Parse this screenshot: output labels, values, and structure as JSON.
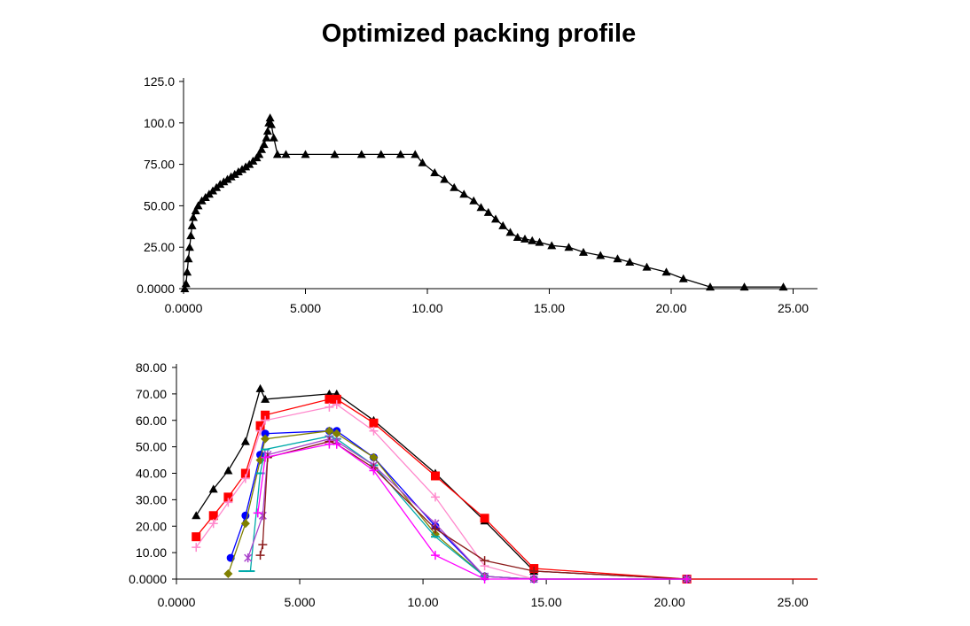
{
  "title": "Optimized packing profile",
  "chart_data": [
    {
      "type": "line",
      "xlim": [
        0,
        26
      ],
      "ylim": [
        0,
        125
      ],
      "x_ticks": [
        "0.0000",
        "5.000",
        "10.00",
        "15.00",
        "20.00",
        "25.00"
      ],
      "y_ticks": [
        "0.0000",
        "25.00",
        "50.00",
        "75.00",
        "100.0",
        "125.0"
      ],
      "grid": false,
      "series": [
        {
          "color": "#000000",
          "marker": "triangle",
          "points": [
            [
              0.05,
              0
            ],
            [
              0.1,
              3
            ],
            [
              0.15,
              10
            ],
            [
              0.2,
              18
            ],
            [
              0.25,
              25
            ],
            [
              0.3,
              32
            ],
            [
              0.35,
              38
            ],
            [
              0.4,
              43
            ],
            [
              0.5,
              47
            ],
            [
              0.6,
              50
            ],
            [
              0.75,
              53
            ],
            [
              0.9,
              55
            ],
            [
              1.05,
              57
            ],
            [
              1.2,
              59
            ],
            [
              1.35,
              61
            ],
            [
              1.5,
              63
            ],
            [
              1.65,
              64.5
            ],
            [
              1.8,
              66
            ],
            [
              1.95,
              67.5
            ],
            [
              2.1,
              69
            ],
            [
              2.25,
              70.5
            ],
            [
              2.4,
              72
            ],
            [
              2.55,
              73.5
            ],
            [
              2.7,
              75
            ],
            [
              2.85,
              77
            ],
            [
              3.0,
              79
            ],
            [
              3.1,
              81
            ],
            [
              3.2,
              84
            ],
            [
              3.3,
              87
            ],
            [
              3.4,
              91
            ],
            [
              3.45,
              95
            ],
            [
              3.5,
              100
            ],
            [
              3.55,
              103
            ],
            [
              3.6,
              99
            ],
            [
              3.7,
              91
            ],
            [
              3.85,
              81
            ],
            [
              4.2,
              81
            ],
            [
              5.0,
              81
            ],
            [
              6.2,
              81
            ],
            [
              7.3,
              81
            ],
            [
              8.1,
              81
            ],
            [
              8.9,
              81
            ],
            [
              9.5,
              81
            ],
            [
              9.8,
              76
            ],
            [
              10.3,
              70
            ],
            [
              10.7,
              66
            ],
            [
              11.1,
              61
            ],
            [
              11.5,
              57
            ],
            [
              11.9,
              53
            ],
            [
              12.2,
              49
            ],
            [
              12.5,
              46
            ],
            [
              12.8,
              42
            ],
            [
              13.1,
              38
            ],
            [
              13.4,
              34
            ],
            [
              13.7,
              31
            ],
            [
              14.0,
              30
            ],
            [
              14.3,
              29
            ],
            [
              14.6,
              28
            ],
            [
              15.1,
              26
            ],
            [
              15.8,
              25
            ],
            [
              16.4,
              22
            ],
            [
              17.1,
              20
            ],
            [
              17.8,
              18
            ],
            [
              18.3,
              16
            ],
            [
              19.0,
              13
            ],
            [
              19.8,
              10
            ],
            [
              20.5,
              6
            ],
            [
              21.6,
              1
            ],
            [
              23.0,
              1
            ],
            [
              24.6,
              1
            ]
          ]
        }
      ]
    },
    {
      "type": "line",
      "xlim": [
        0,
        26
      ],
      "ylim": [
        0,
        80
      ],
      "x_ticks": [
        "0.0000",
        "5.000",
        "10.00",
        "15.00",
        "20.00",
        "25.00"
      ],
      "y_ticks": [
        "0.0000",
        "10.00",
        "20.00",
        "30.00",
        "40.00",
        "50.00",
        "60.00",
        "70.00",
        "80.00"
      ],
      "grid": false,
      "series": [
        {
          "color": "#000000",
          "marker": "triangle",
          "points": [
            [
              0.8,
              24
            ],
            [
              1.5,
              34
            ],
            [
              2.1,
              41
            ],
            [
              2.8,
              52
            ],
            [
              3.4,
              72
            ],
            [
              3.6,
              68
            ],
            [
              6.2,
              70
            ],
            [
              6.5,
              70
            ],
            [
              8.0,
              60
            ],
            [
              10.5,
              40
            ],
            [
              12.5,
              22
            ],
            [
              14.5,
              3
            ],
            [
              20.7,
              0
            ],
            [
              26,
              0
            ]
          ]
        },
        {
          "color": "#ff0000",
          "marker": "square",
          "points": [
            [
              0.8,
              16
            ],
            [
              1.5,
              24
            ],
            [
              2.1,
              31
            ],
            [
              2.8,
              40
            ],
            [
              3.4,
              58
            ],
            [
              3.6,
              62
            ],
            [
              6.2,
              68
            ],
            [
              6.5,
              68
            ],
            [
              8.0,
              59
            ],
            [
              10.5,
              39
            ],
            [
              12.5,
              23
            ],
            [
              14.5,
              4
            ],
            [
              20.7,
              0
            ],
            [
              26,
              0
            ]
          ]
        },
        {
          "color": "#ff88cc",
          "marker": "cross",
          "points": [
            [
              0.8,
              12
            ],
            [
              1.5,
              21
            ],
            [
              2.1,
              29
            ],
            [
              2.8,
              38
            ],
            [
              3.4,
              56
            ],
            [
              3.6,
              60
            ],
            [
              6.2,
              65
            ],
            [
              6.5,
              66
            ],
            [
              8.0,
              56
            ],
            [
              10.5,
              31
            ],
            [
              12.5,
              5
            ],
            [
              14.5,
              0
            ],
            [
              20.7,
              0
            ]
          ]
        },
        {
          "color": "#0000ff",
          "marker": "circle",
          "points": [
            [
              2.2,
              8
            ],
            [
              2.8,
              24
            ],
            [
              3.4,
              47
            ],
            [
              3.6,
              55
            ],
            [
              6.2,
              56
            ],
            [
              6.5,
              56
            ],
            [
              8.0,
              46
            ],
            [
              10.5,
              20
            ],
            [
              12.5,
              1
            ],
            [
              14.5,
              0
            ],
            [
              20.7,
              0
            ]
          ]
        },
        {
          "color": "#808000",
          "marker": "diamond",
          "points": [
            [
              2.1,
              2
            ],
            [
              2.8,
              21
            ],
            [
              3.4,
              45
            ],
            [
              3.6,
              53
            ],
            [
              6.2,
              56
            ],
            [
              6.5,
              55
            ],
            [
              8.0,
              46
            ],
            [
              10.5,
              17
            ],
            [
              12.5,
              1
            ],
            [
              14.5,
              0
            ],
            [
              20.7,
              0
            ]
          ]
        },
        {
          "color": "#00aaaa",
          "marker": "dash",
          "points": [
            [
              2.7,
              3
            ],
            [
              3.0,
              3
            ],
            [
              3.4,
              40
            ],
            [
              3.6,
              49
            ],
            [
              6.2,
              54
            ],
            [
              6.5,
              53
            ],
            [
              8.0,
              43
            ],
            [
              10.5,
              16
            ],
            [
              12.5,
              1
            ],
            [
              14.5,
              0
            ],
            [
              20.7,
              0
            ]
          ]
        },
        {
          "color": "#aa44cc",
          "marker": "asterisk",
          "points": [
            [
              2.9,
              8
            ],
            [
              3.5,
              24
            ],
            [
              3.7,
              47
            ],
            [
              6.2,
              53
            ],
            [
              6.5,
              52
            ],
            [
              8.0,
              43
            ],
            [
              10.5,
              21
            ],
            [
              12.5,
              1
            ],
            [
              14.5,
              0
            ],
            [
              20.7,
              0
            ]
          ]
        },
        {
          "color": "#8b1a1a",
          "marker": "plus",
          "points": [
            [
              3.4,
              9
            ],
            [
              3.5,
              13
            ],
            [
              3.7,
              46
            ],
            [
              6.2,
              52
            ],
            [
              6.5,
              51
            ],
            [
              8.0,
              42
            ],
            [
              10.5,
              19
            ],
            [
              12.5,
              7
            ],
            [
              14.5,
              3
            ],
            [
              20.7,
              0
            ]
          ]
        },
        {
          "color": "#ff00ff",
          "marker": "plus",
          "points": [
            [
              3.3,
              25
            ],
            [
              3.6,
              46
            ],
            [
              6.2,
              51
            ],
            [
              6.5,
              51
            ],
            [
              8.0,
              41
            ],
            [
              10.5,
              9
            ],
            [
              12.5,
              0
            ],
            [
              14.5,
              0
            ],
            [
              20.7,
              0
            ]
          ]
        }
      ]
    }
  ]
}
